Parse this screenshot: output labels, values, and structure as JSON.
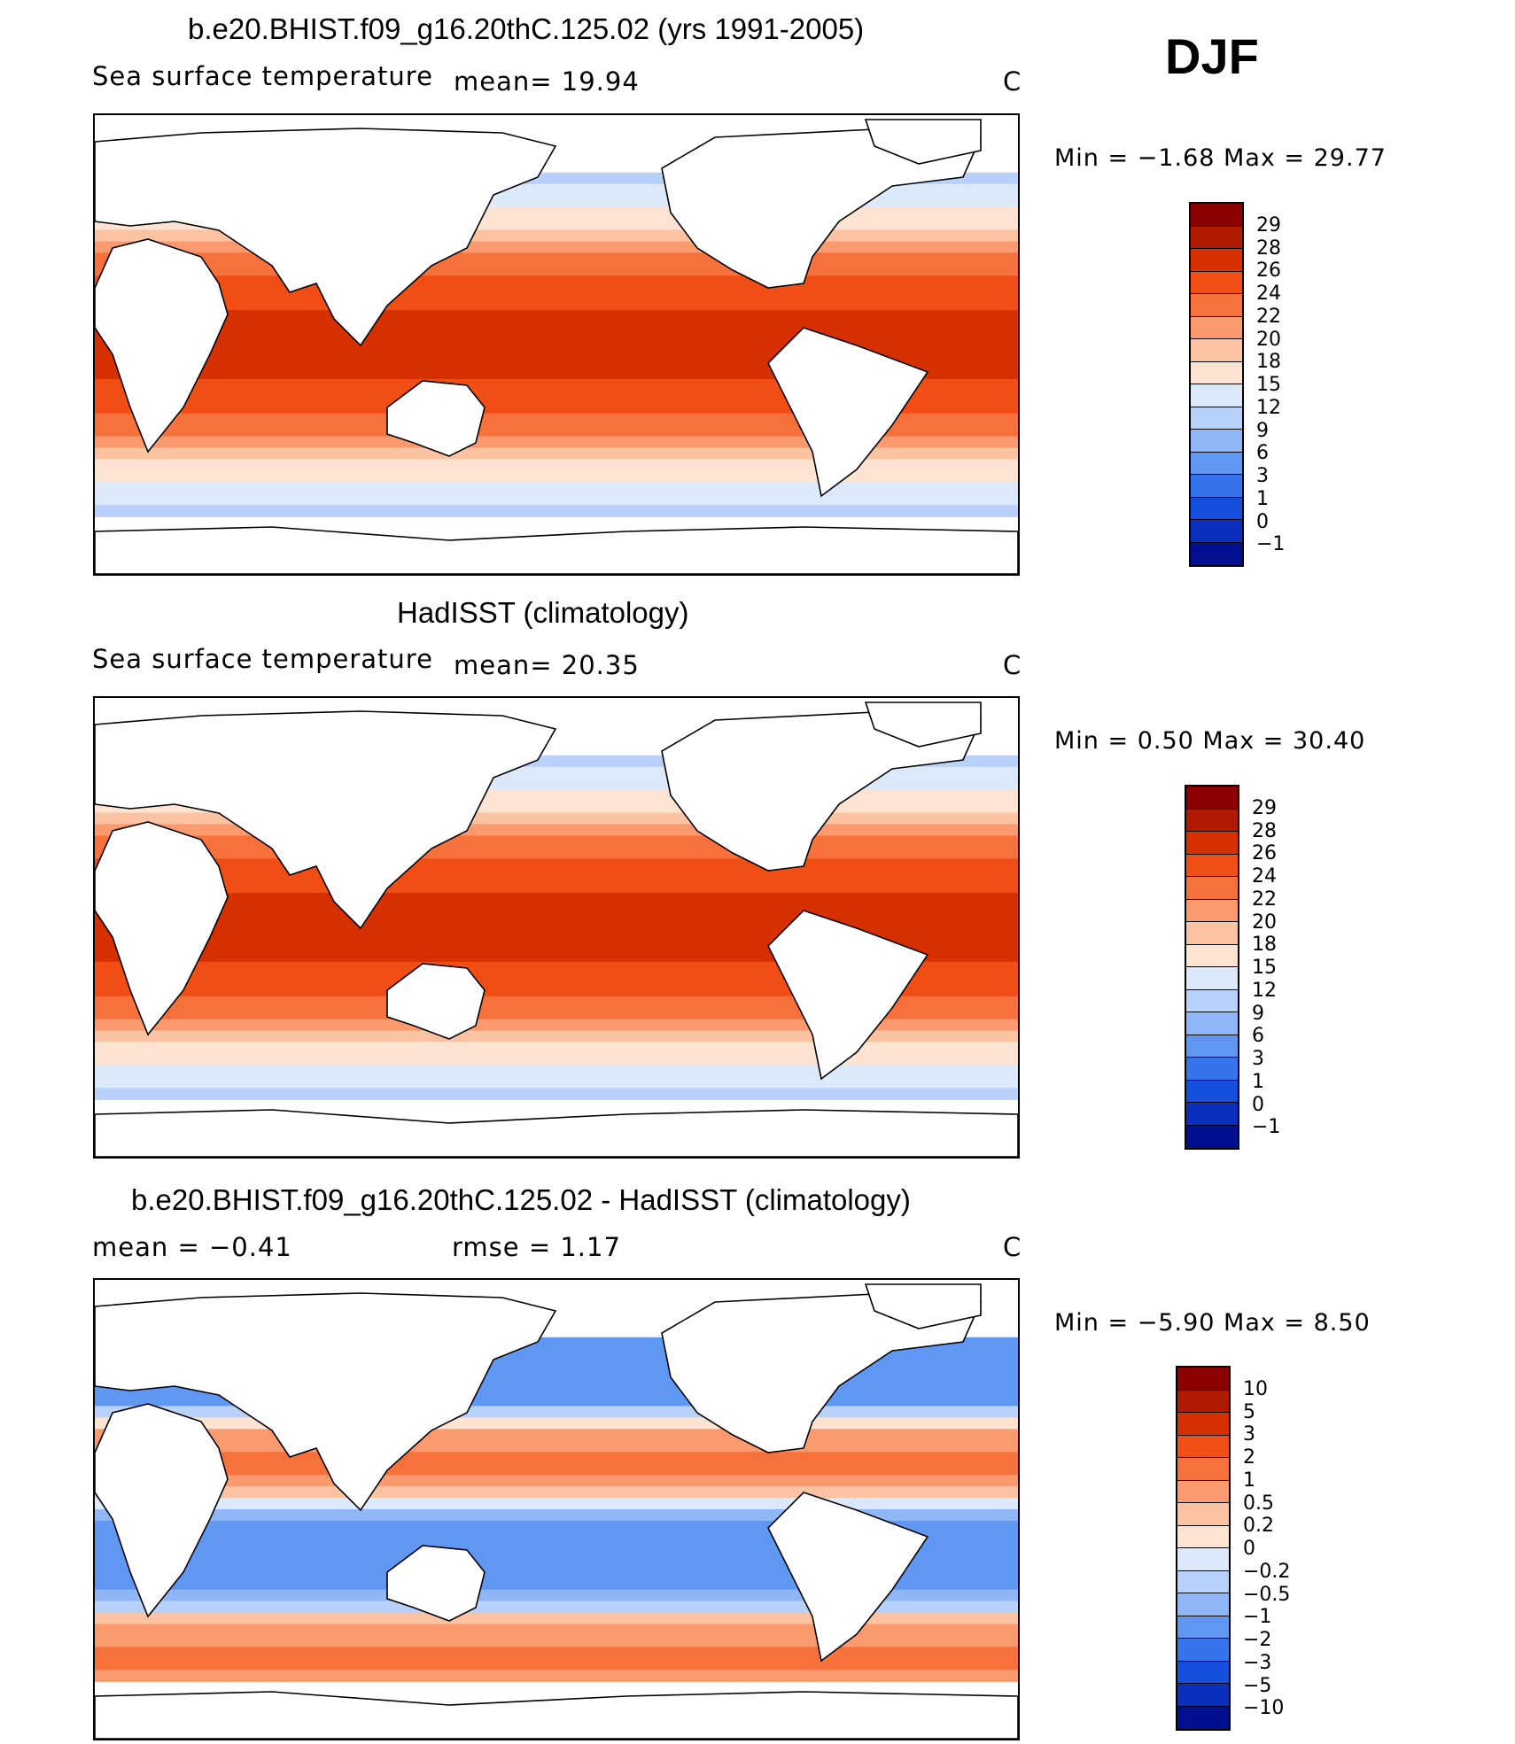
{
  "season": "DJF",
  "units": "C",
  "panels": [
    {
      "title": "b.e20.BHIST.f09_g16.20thC.125.02 (yrs 1991-2005)",
      "variable": "Sea surface temperature",
      "stat1": "mean=   19.94",
      "stat2": "",
      "units": "C",
      "minmax": "Min =   −1.68  Max =    29.77"
    },
    {
      "title": "HadISST (climatology)",
      "variable": "Sea surface temperature",
      "stat1": "mean=   20.35",
      "stat2": "",
      "units": "C",
      "minmax": "Min =     0.50  Max =    30.40"
    },
    {
      "title": "b.e20.BHIST.f09_g16.20thC.125.02 - HadISST (climatology)",
      "variable": "",
      "stat1": "mean =   −0.41",
      "stat2": "rmse =     1.17",
      "units": "C",
      "minmax": "Min =   −5.90  Max =      8.50"
    }
  ],
  "chart_data": [
    {
      "type": "heatmap",
      "title": "b.e20.BHIST.f09_g16.20thC.125.02 (yrs 1991-2005)",
      "field": "Sea surface temperature",
      "mean": 19.94,
      "min": -1.68,
      "max": 29.77,
      "units": "C",
      "colorbar_levels": [
        "29",
        "28",
        "26",
        "24",
        "22",
        "20",
        "18",
        "15",
        "12",
        "9",
        "6",
        "3",
        "1",
        "0",
        "−1"
      ],
      "colorbar_colors": [
        "#8b0000",
        "#b01a00",
        "#d63000",
        "#f04e14",
        "#f7713c",
        "#fb9a6f",
        "#fcc3a2",
        "#fde4d2",
        "#dbe9fb",
        "#b7d1fa",
        "#8fb7f8",
        "#5f97f2",
        "#3574ec",
        "#1450dd",
        "#0a2fbd",
        "#000f8f"
      ]
    },
    {
      "type": "heatmap",
      "title": "HadISST (climatology)",
      "field": "Sea surface temperature",
      "mean": 20.35,
      "min": 0.5,
      "max": 30.4,
      "units": "C",
      "colorbar_levels": [
        "29",
        "28",
        "26",
        "24",
        "22",
        "20",
        "18",
        "15",
        "12",
        "9",
        "6",
        "3",
        "1",
        "0",
        "−1"
      ],
      "colorbar_colors": [
        "#8b0000",
        "#b01a00",
        "#d63000",
        "#f04e14",
        "#f7713c",
        "#fb9a6f",
        "#fcc3a2",
        "#fde4d2",
        "#dbe9fb",
        "#b7d1fa",
        "#8fb7f8",
        "#5f97f2",
        "#3574ec",
        "#1450dd",
        "#0a2fbd",
        "#000f8f"
      ]
    },
    {
      "type": "heatmap",
      "title": "b.e20.BHIST.f09_g16.20thC.125.02 - HadISST (climatology)",
      "mean": -0.41,
      "rmse": 1.17,
      "min": -5.9,
      "max": 8.5,
      "units": "C",
      "colorbar_levels": [
        "10",
        "5",
        "3",
        "2",
        "1",
        "0.5",
        "0.2",
        "0",
        "−0.2",
        "−0.5",
        "−1",
        "−2",
        "−3",
        "−5",
        "−10"
      ],
      "colorbar_colors": [
        "#8b0000",
        "#b01a00",
        "#d63000",
        "#f04e14",
        "#f7713c",
        "#fb9a6f",
        "#fcc3a2",
        "#fde4d2",
        "#dbe9fb",
        "#b7d1fa",
        "#8fb7f8",
        "#5f97f2",
        "#3574ec",
        "#1450dd",
        "#0a2fbd",
        "#000f8f"
      ]
    }
  ]
}
